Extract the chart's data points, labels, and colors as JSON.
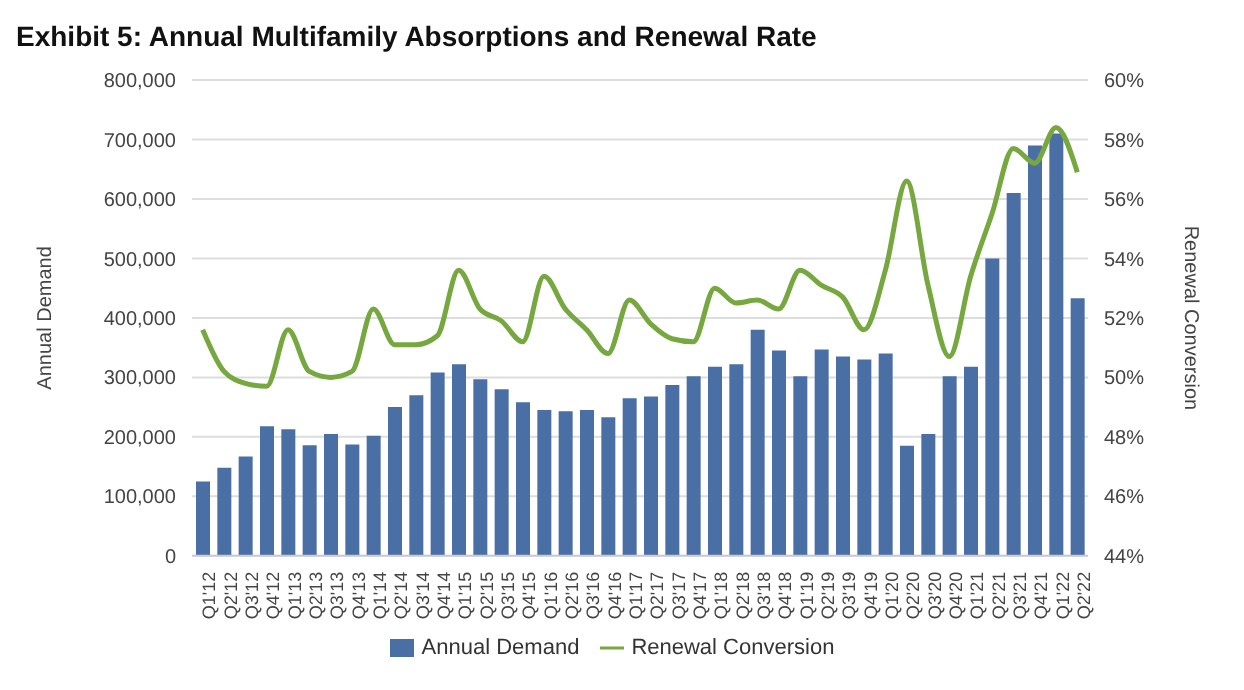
{
  "chart_data": {
    "type": "bar",
    "title": "Exhibit 5: Annual Multifamily Absorptions and Renewal Rate",
    "ylabel": "Annual Demand",
    "y2label": "Renewal Conversion",
    "categories": [
      "Q1'12",
      "Q2'12",
      "Q3'12",
      "Q4'12",
      "Q1'13",
      "Q2'13",
      "Q3'13",
      "Q4'13",
      "Q1'14",
      "Q2'14",
      "Q3'14",
      "Q4'14",
      "Q1'15",
      "Q2'15",
      "Q3'15",
      "Q4'15",
      "Q1'16",
      "Q2'16",
      "Q3'16",
      "Q4'16",
      "Q1'17",
      "Q2'17",
      "Q3'17",
      "Q4'17",
      "Q1'18",
      "Q2'18",
      "Q3'18",
      "Q4'18",
      "Q1'19",
      "Q2'19",
      "Q3'19",
      "Q4'19",
      "Q1'20",
      "Q2'20",
      "Q3'20",
      "Q4'20",
      "Q1'21",
      "Q2'21",
      "Q3'21",
      "Q4'21",
      "Q1'22",
      "Q2'22"
    ],
    "series": [
      {
        "name": "Annual Demand",
        "color": "#4a6fa5",
        "values": [
          125000,
          148000,
          167000,
          218000,
          213000,
          186000,
          205000,
          187000,
          202000,
          250000,
          270000,
          308000,
          322000,
          297000,
          280000,
          258000,
          245000,
          243000,
          245000,
          233000,
          265000,
          268000,
          287000,
          302000,
          318000,
          322000,
          380000,
          345000,
          302000,
          347000,
          335000,
          330000,
          340000,
          185000,
          205000,
          302000,
          318000,
          500000,
          610000,
          690000,
          710000,
          433000
        ]
      },
      {
        "name": "Renewal Conversion",
        "type": "line",
        "axis": "y2",
        "color": "#76a83f",
        "values": [
          51.6,
          50.2,
          49.8,
          49.7,
          51.6,
          50.2,
          50.0,
          50.2,
          52.3,
          51.1,
          51.1,
          51.4,
          53.6,
          52.3,
          51.9,
          51.2,
          53.4,
          52.3,
          51.6,
          50.8,
          52.6,
          51.8,
          51.3,
          51.2,
          53.0,
          52.5,
          52.6,
          52.3,
          53.6,
          53.1,
          52.7,
          51.6,
          53.6,
          56.6,
          53.1,
          50.7,
          53.4,
          55.5,
          57.7,
          57.2,
          58.4,
          56.9
        ]
      }
    ],
    "ylim": [
      0,
      800000
    ],
    "yticks": [
      {
        "value": 0,
        "label": "0"
      },
      {
        "value": 100000,
        "label": "100,000"
      },
      {
        "value": 200000,
        "label": "200,000"
      },
      {
        "value": 300000,
        "label": "300,000"
      },
      {
        "value": 400000,
        "label": "400,000"
      },
      {
        "value": 500000,
        "label": "500,000"
      },
      {
        "value": 600000,
        "label": "600,000"
      },
      {
        "value": 700000,
        "label": "700,000"
      },
      {
        "value": 800000,
        "label": "800,000"
      }
    ],
    "y2lim": [
      44,
      60
    ],
    "y2ticks": [
      {
        "value": 44,
        "label": "44%"
      },
      {
        "value": 46,
        "label": "46%"
      },
      {
        "value": 48,
        "label": "48%"
      },
      {
        "value": 50,
        "label": "50%"
      },
      {
        "value": 52,
        "label": "52%"
      },
      {
        "value": 54,
        "label": "54%"
      },
      {
        "value": 56,
        "label": "56%"
      },
      {
        "value": 58,
        "label": "58%"
      },
      {
        "value": 60,
        "label": "60%"
      }
    ],
    "grid": "y",
    "legend": "bottom",
    "marker": "none",
    "line_style": "solid"
  }
}
